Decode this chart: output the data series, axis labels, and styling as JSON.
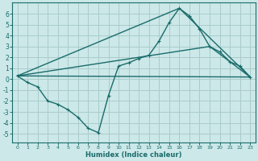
{
  "xlabel": "Humidex (Indice chaleur)",
  "bg_color": "#cce8e8",
  "grid_color": "#aacccc",
  "line_color": "#1a6b6b",
  "xlim": [
    -0.5,
    23.5
  ],
  "ylim": [
    -5.8,
    7.0
  ],
  "yticks": [
    -5,
    -4,
    -3,
    -2,
    -1,
    0,
    1,
    2,
    3,
    4,
    5,
    6
  ],
  "xticks": [
    0,
    1,
    2,
    3,
    4,
    5,
    6,
    7,
    8,
    9,
    10,
    11,
    12,
    13,
    14,
    15,
    16,
    17,
    18,
    19,
    20,
    21,
    22,
    23
  ],
  "line1_x": [
    0,
    1,
    2,
    3,
    4,
    5,
    6,
    7,
    8,
    9,
    10,
    11,
    12,
    13,
    14,
    15,
    16,
    17,
    18,
    19,
    20,
    21,
    22,
    23
  ],
  "line1_y": [
    0.3,
    -0.3,
    -0.7,
    -2.0,
    -2.3,
    -2.8,
    -3.5,
    -4.5,
    -4.9,
    -1.5,
    1.2,
    1.5,
    1.9,
    2.2,
    3.5,
    5.2,
    6.5,
    5.8,
    4.6,
    3.0,
    2.5,
    1.6,
    1.2,
    0.2
  ],
  "line2_x": [
    0,
    23
  ],
  "line2_y": [
    0.3,
    0.2
  ],
  "line3_x": [
    0,
    19,
    23
  ],
  "line3_y": [
    0.3,
    3.0,
    0.2
  ],
  "line4_x": [
    0,
    16,
    23
  ],
  "line4_y": [
    0.3,
    6.5,
    0.2
  ]
}
